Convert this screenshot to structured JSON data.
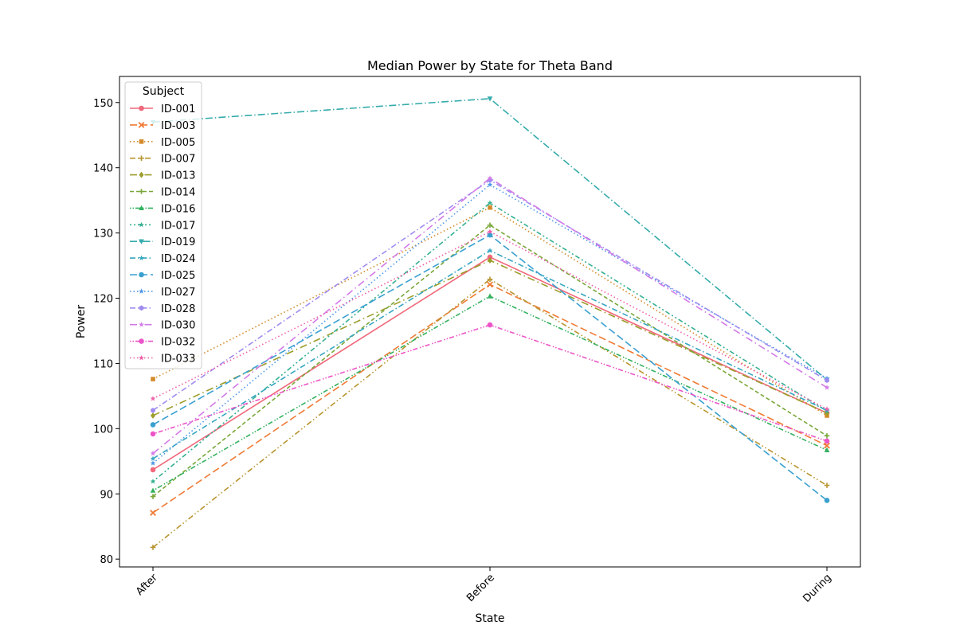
{
  "chart_data": {
    "type": "line",
    "title": "Median Power by State for Theta Band",
    "xlabel": "State",
    "ylabel": "Power",
    "categories": [
      "After",
      "Before",
      "During"
    ],
    "ylim": [
      78.8,
      154.0
    ],
    "yticks": [
      80,
      90,
      100,
      110,
      120,
      130,
      140,
      150
    ],
    "grid": false,
    "legend": {
      "title": "Subject",
      "placement": "upper-left"
    },
    "series": [
      {
        "name": "ID-001",
        "values": [
          93.7,
          126.3,
          102.4
        ],
        "color": "#f0687c",
        "marker": "circle",
        "dash": ""
      },
      {
        "name": "ID-003",
        "values": [
          87.1,
          122.1,
          97.4
        ],
        "color": "#ef7b35",
        "marker": "x",
        "dash": "9 4"
      },
      {
        "name": "ID-005",
        "values": [
          107.6,
          133.9,
          102.0
        ],
        "color": "#d38b2b",
        "marker": "square",
        "dash": "1.5 3"
      },
      {
        "name": "ID-007",
        "values": [
          81.8,
          122.9,
          91.3
        ],
        "color": "#b8952f",
        "marker": "plus",
        "dash": "7 3 1.5 3 1.5 3"
      },
      {
        "name": "ID-013",
        "values": [
          102.0,
          125.8,
          102.4
        ],
        "color": "#9c9d2a",
        "marker": "diamond",
        "dash": "9 4 1.5 4"
      },
      {
        "name": "ID-014",
        "values": [
          89.6,
          131.2,
          98.9
        ],
        "color": "#7aa73a",
        "marker": "plus",
        "dash": "5 3"
      },
      {
        "name": "ID-016",
        "values": [
          90.5,
          120.3,
          96.7
        ],
        "color": "#33b15f",
        "marker": "triangle-up",
        "dash": "1.5 2 1.5 2 6 3"
      },
      {
        "name": "ID-017",
        "values": [
          91.9,
          134.6,
          102.7
        ],
        "color": "#35b091",
        "marker": "star",
        "dash": "2 3 2 3 6 3"
      },
      {
        "name": "ID-019",
        "values": [
          147.0,
          150.6,
          107.5
        ],
        "color": "#35abab",
        "marker": "triangle-down",
        "dash": "9 3 1.5 3"
      },
      {
        "name": "ID-024",
        "values": [
          95.4,
          127.3,
          102.8
        ],
        "color": "#37a6c1",
        "marker": "star",
        "dash": "7 3 1.5 3"
      },
      {
        "name": "ID-025",
        "values": [
          100.6,
          129.7,
          89.0
        ],
        "color": "#3aa0d0",
        "marker": "circle",
        "dash": "9 4"
      },
      {
        "name": "ID-027",
        "values": [
          94.7,
          137.4,
          107.7
        ],
        "color": "#4d97e8",
        "marker": "star",
        "dash": "1.5 3"
      },
      {
        "name": "ID-028",
        "values": [
          102.8,
          138.1,
          107.4
        ],
        "color": "#a08cf0",
        "marker": "hexagon",
        "dash": "7 3 1.5 3"
      },
      {
        "name": "ID-030",
        "values": [
          96.2,
          138.4,
          106.3
        ],
        "color": "#d37ae8",
        "marker": "star",
        "dash": "9 4 1.5 4"
      },
      {
        "name": "ID-032",
        "values": [
          99.2,
          115.9,
          98.1
        ],
        "color": "#ec55c8",
        "marker": "circle",
        "dash": "1.5 2 1.5 2 6 3"
      },
      {
        "name": "ID-033",
        "values": [
          104.6,
          130.2,
          103.0
        ],
        "color": "#f05ea8",
        "marker": "star",
        "dash": "1.5 3"
      }
    ]
  }
}
